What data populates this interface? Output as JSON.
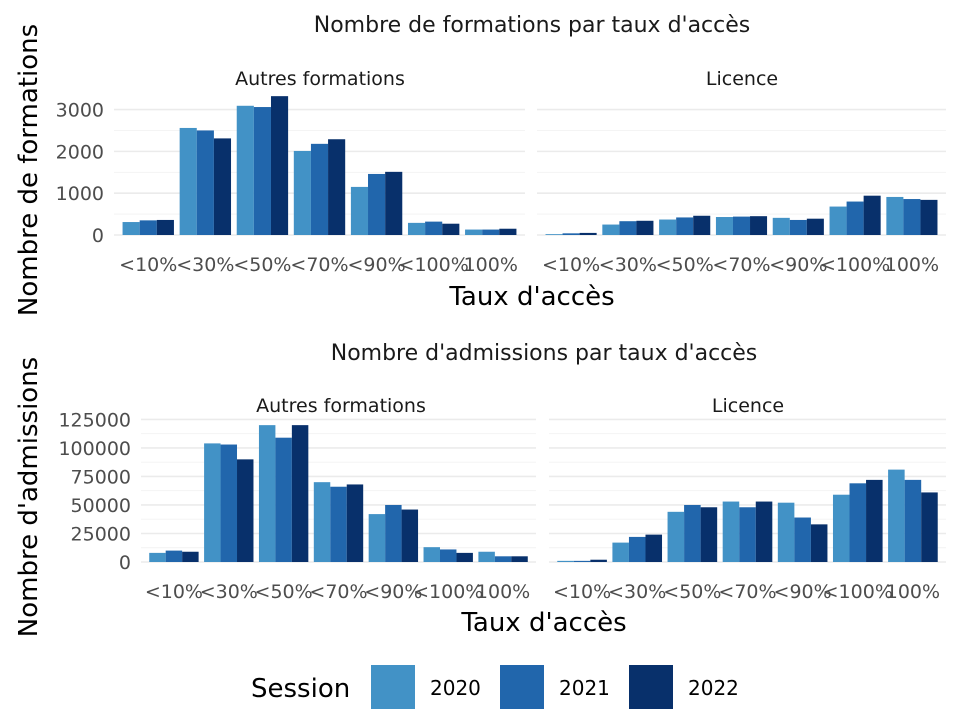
{
  "legend": {
    "title": "Session",
    "items": [
      {
        "label": "2020",
        "color": "#4292c6"
      },
      {
        "label": "2021",
        "color": "#2166ac"
      },
      {
        "label": "2022",
        "color": "#08306b"
      }
    ]
  },
  "chart_data": [
    {
      "type": "bar",
      "title": "Nombre de formations par taux d'accès",
      "xlabel": "Taux d'accès",
      "ylabel": "Nombre de formations",
      "ylim": [
        0,
        3300
      ],
      "yticks": [
        "0",
        "1000",
        "2000",
        "3000"
      ],
      "ytick_values": [
        0,
        1000,
        2000,
        3000
      ],
      "categories": [
        "<10%",
        "<30%",
        "<50%",
        "<70%",
        "<90%",
        "<100%",
        "100%"
      ],
      "facets": [
        {
          "name": "Autres formations",
          "series": [
            {
              "name": "2020",
              "values": [
                310,
                2560,
                3090,
                2010,
                1150,
                290,
                130
              ]
            },
            {
              "name": "2021",
              "values": [
                350,
                2500,
                3060,
                2180,
                1460,
                320,
                130
              ]
            },
            {
              "name": "2022",
              "values": [
                360,
                2310,
                3320,
                2290,
                1510,
                270,
                150
              ]
            }
          ]
        },
        {
          "name": "Licence",
          "series": [
            {
              "name": "2020",
              "values": [
                20,
                250,
                370,
                430,
                410,
                680,
                910
              ]
            },
            {
              "name": "2021",
              "values": [
                40,
                330,
                420,
                440,
                360,
                800,
                860
              ]
            },
            {
              "name": "2022",
              "values": [
                50,
                340,
                460,
                450,
                390,
                940,
                840
              ]
            }
          ]
        }
      ],
      "grid": true
    },
    {
      "type": "bar",
      "title": "Nombre d'admissions par taux d'accès",
      "xlabel": "Taux d'accès",
      "ylabel": "Nombre d'admissions",
      "ylim": [
        0,
        121000
      ],
      "yticks": [
        "0",
        "25000",
        "50000",
        "75000",
        "100000",
        "125000"
      ],
      "ytick_values": [
        0,
        25000,
        50000,
        75000,
        100000,
        125000
      ],
      "categories": [
        "<10%",
        "<30%",
        "<50%",
        "<70%",
        "<90%",
        "<100%",
        "100%"
      ],
      "facets": [
        {
          "name": "Autres formations",
          "series": [
            {
              "name": "2020",
              "values": [
                8000,
                104000,
                120000,
                70000,
                42000,
                13000,
                9000
              ]
            },
            {
              "name": "2021",
              "values": [
                10000,
                103000,
                109000,
                66000,
                50000,
                11000,
                5000
              ]
            },
            {
              "name": "2022",
              "values": [
                9000,
                90000,
                120000,
                68000,
                46000,
                8000,
                5000
              ]
            }
          ]
        },
        {
          "name": "Licence",
          "series": [
            {
              "name": "2020",
              "values": [
                1000,
                17000,
                44000,
                53000,
                52000,
                59000,
                81000
              ]
            },
            {
              "name": "2021",
              "values": [
                1000,
                22000,
                50000,
                48000,
                39000,
                69000,
                72000
              ]
            },
            {
              "name": "2022",
              "values": [
                2000,
                24000,
                48000,
                53000,
                33000,
                72000,
                61000
              ]
            }
          ]
        }
      ],
      "grid": true
    }
  ]
}
